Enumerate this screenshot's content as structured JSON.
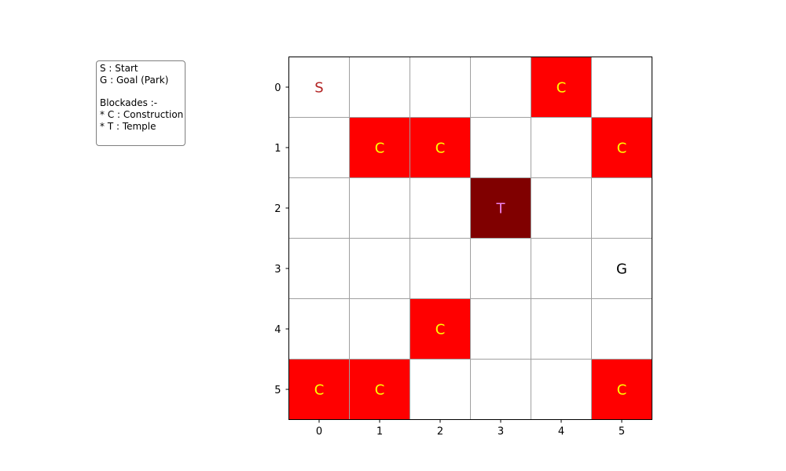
{
  "legend": {
    "lines": [
      "S : Start",
      "G : Goal (Park)",
      "Blockades :-",
      "* C : Construction",
      "* T : Temple"
    ]
  },
  "board": {
    "rows": 6,
    "cols": 6,
    "x_ticks": [
      "0",
      "1",
      "2",
      "3",
      "4",
      "5"
    ],
    "y_ticks": [
      "0",
      "1",
      "2",
      "3",
      "4",
      "5"
    ],
    "grid_color": "#a0a0a0",
    "cells": [
      {
        "row": 0,
        "col": 0,
        "label": "S",
        "type": "start"
      },
      {
        "row": 0,
        "col": 4,
        "label": "C",
        "type": "construction"
      },
      {
        "row": 1,
        "col": 1,
        "label": "C",
        "type": "construction"
      },
      {
        "row": 1,
        "col": 2,
        "label": "C",
        "type": "construction"
      },
      {
        "row": 1,
        "col": 5,
        "label": "C",
        "type": "construction"
      },
      {
        "row": 2,
        "col": 3,
        "label": "T",
        "type": "temple"
      },
      {
        "row": 3,
        "col": 5,
        "label": "G",
        "type": "goal"
      },
      {
        "row": 4,
        "col": 2,
        "label": "C",
        "type": "construction"
      },
      {
        "row": 5,
        "col": 0,
        "label": "C",
        "type": "construction"
      },
      {
        "row": 5,
        "col": 1,
        "label": "C",
        "type": "construction"
      },
      {
        "row": 5,
        "col": 5,
        "label": "C",
        "type": "construction"
      }
    ],
    "styles": {
      "start": {
        "fill": "#ffffff",
        "text": "#b22222"
      },
      "goal": {
        "fill": "#ffffff",
        "text": "#000000"
      },
      "construction": {
        "fill": "#ff0000",
        "text": "#ffff00"
      },
      "temple": {
        "fill": "#800000",
        "text": "#ee82ee"
      }
    }
  }
}
